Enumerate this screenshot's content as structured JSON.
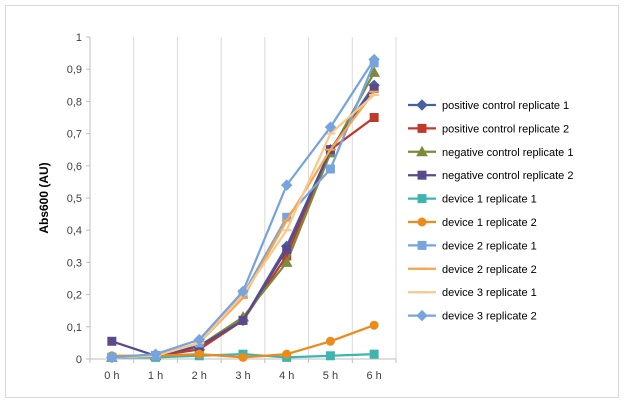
{
  "chart_data": {
    "type": "line",
    "title": "",
    "xlabel": "",
    "ylabel": "Abs600 (AU)",
    "categories": [
      "0 h",
      "1 h",
      "2 h",
      "3 h",
      "4 h",
      "5 h",
      "6 h"
    ],
    "ylim": [
      0,
      1
    ],
    "yticks": [
      "0",
      "0,1",
      "0,2",
      "0,3",
      "0,4",
      "0,5",
      "0,6",
      "0,7",
      "0,8",
      "0,9",
      "1"
    ],
    "grid": "vertical",
    "legend_position": "right",
    "series": [
      {
        "name": "positive control replicate 1",
        "color": "#4a5f9e",
        "marker": "diamond",
        "values": [
          0.005,
          0.01,
          0.03,
          0.12,
          0.35,
          0.65,
          0.85
        ]
      },
      {
        "name": "positive control replicate 2",
        "color": "#c0392b",
        "marker": "square",
        "values": [
          0.005,
          0.01,
          0.03,
          0.12,
          0.32,
          0.65,
          0.75
        ]
      },
      {
        "name": "negative control replicate 1",
        "color": "#7d8a3a",
        "marker": "triangle",
        "values": [
          0.005,
          0.01,
          0.04,
          0.13,
          0.3,
          0.64,
          0.89
        ]
      },
      {
        "name": "negative control replicate 2",
        "color": "#5b4a8b",
        "marker": "square",
        "values": [
          0.055,
          0.01,
          0.04,
          0.12,
          0.34,
          0.65,
          0.84
        ]
      },
      {
        "name": "device 1 replicate 1",
        "color": "#3fb5b0",
        "marker": "square",
        "values": [
          0.005,
          0.005,
          0.01,
          0.015,
          0.005,
          0.01,
          0.015
        ]
      },
      {
        "name": "device 1 replicate 2",
        "color": "#ec8a1a",
        "marker": "circle",
        "values": [
          0.01,
          0.01,
          0.015,
          0.005,
          0.015,
          0.055,
          0.105
        ]
      },
      {
        "name": "device 2 replicate 1",
        "color": "#77a3de",
        "marker": "square",
        "values": [
          0.005,
          0.01,
          0.05,
          0.2,
          0.44,
          0.59,
          0.92
        ]
      },
      {
        "name": "device 2 replicate 2",
        "color": "#f6a54b",
        "marker": "dash",
        "values": [
          0.005,
          0.01,
          0.05,
          0.19,
          0.43,
          0.65,
          0.83
        ]
      },
      {
        "name": "device 3 replicate 1",
        "color": "#f7c88f",
        "marker": "dash",
        "values": [
          0.005,
          0.01,
          0.05,
          0.2,
          0.4,
          0.7,
          0.82
        ]
      },
      {
        "name": "device 3 replicate 2",
        "color": "#77a3de",
        "marker": "diamond",
        "values": [
          0.005,
          0.015,
          0.06,
          0.21,
          0.54,
          0.72,
          0.93
        ]
      }
    ]
  }
}
